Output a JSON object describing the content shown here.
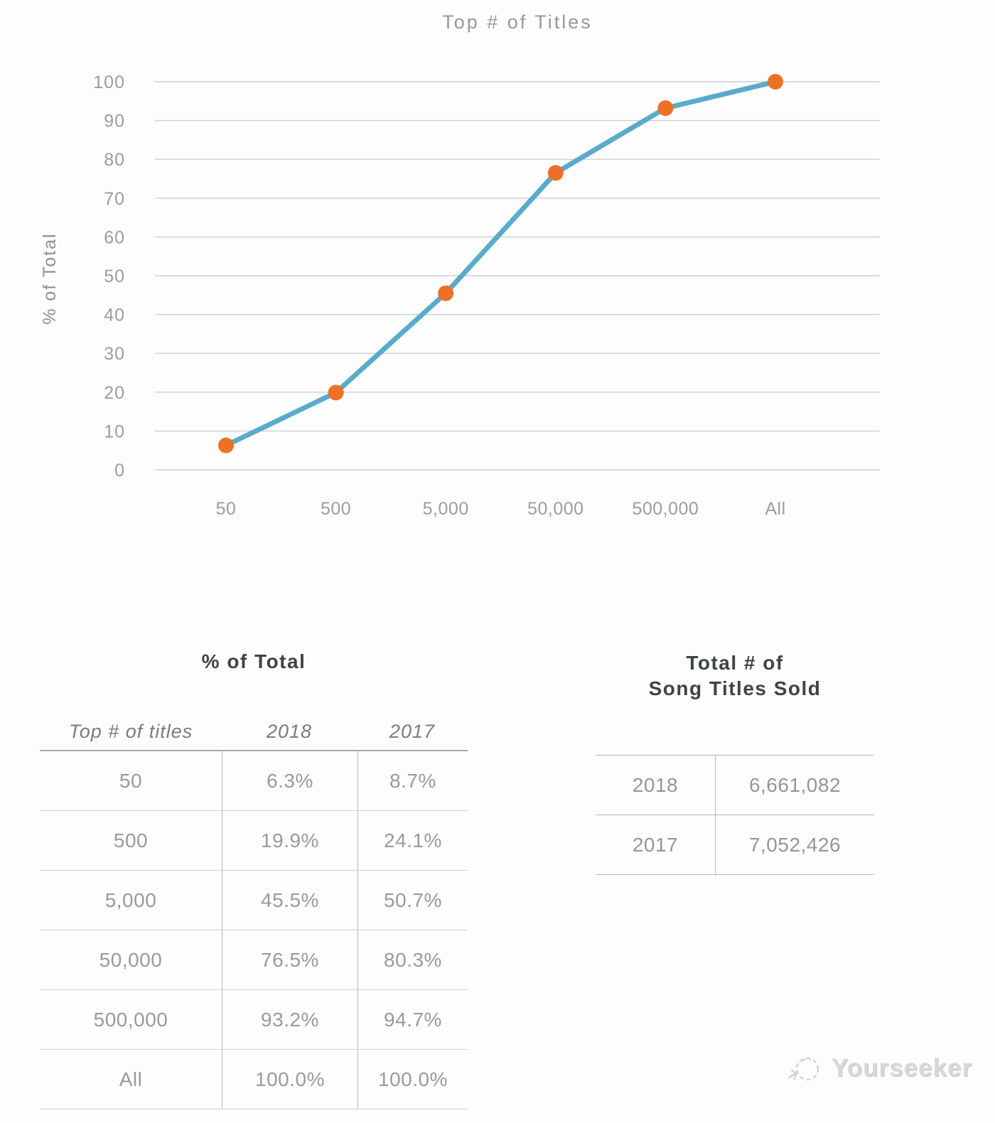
{
  "chart_data": {
    "type": "line",
    "title": "Top # of Titles",
    "ylabel": "% of Total",
    "categories": [
      "50",
      "500",
      "5,000",
      "50,000",
      "500,000",
      "All"
    ],
    "series": [
      {
        "name": "2018",
        "values": [
          6.3,
          19.9,
          45.5,
          76.5,
          93.2,
          100.0
        ]
      }
    ],
    "ylim": [
      0,
      100
    ],
    "yticks": [
      0,
      10,
      20,
      30,
      40,
      50,
      60,
      70,
      80,
      90,
      100
    ],
    "grid": true,
    "legend_position": "none",
    "line_color": "#5AABCB",
    "marker_color": "#EC7125"
  },
  "left_table": {
    "title": "% of Total",
    "columns": [
      "Top # of titles",
      "2018",
      "2017"
    ],
    "rows": [
      [
        "50",
        "6.3%",
        "8.7%"
      ],
      [
        "500",
        "19.9%",
        "24.1%"
      ],
      [
        "5,000",
        "45.5%",
        "50.7%"
      ],
      [
        "50,000",
        "76.5%",
        "80.3%"
      ],
      [
        "500,000",
        "93.2%",
        "94.7%"
      ],
      [
        "All",
        "100.0%",
        "100.0%"
      ]
    ]
  },
  "right_table": {
    "title_line1": "Total # of",
    "title_line2": "Song Titles Sold",
    "rows": [
      [
        "2018",
        "6,661,082"
      ],
      [
        "2017",
        "7,052,426"
      ]
    ]
  },
  "watermark": {
    "label": "Yourseeker",
    "icon": "sketch-logo-icon"
  },
  "colors": {
    "line": "#5AABCB",
    "marker": "#EC7125",
    "grid": "#cdcfd0",
    "text_muted": "#9a9da0",
    "text_dark": "#3e4347"
  }
}
